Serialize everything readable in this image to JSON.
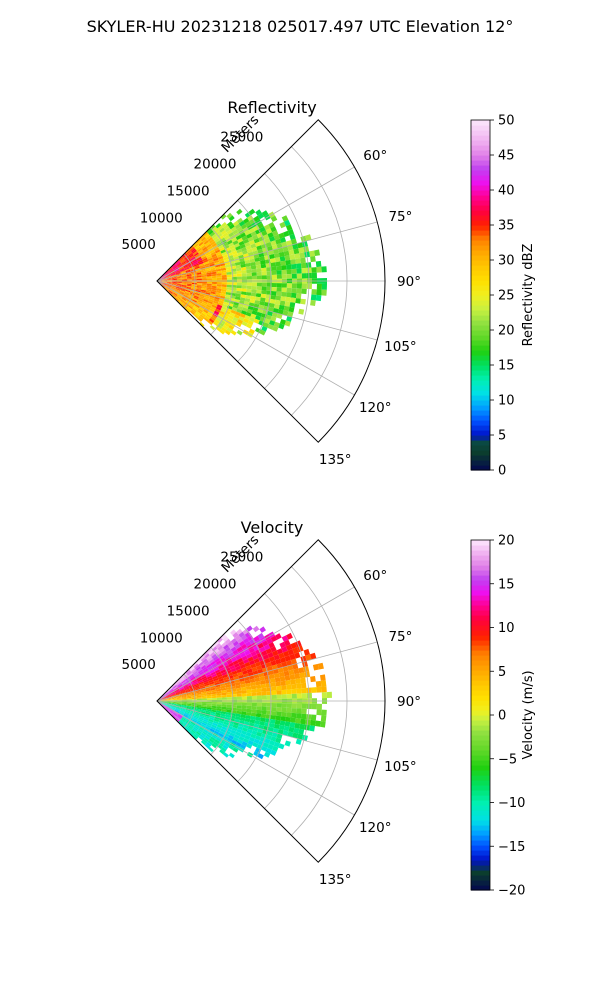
{
  "figure": {
    "suptitle": "SKYLER-HU  20231218  025017.497 UTC Elevation 12°"
  },
  "chart_data": [
    {
      "type": "heatmap",
      "subtype": "polar-sector",
      "title": "Reflectivity",
      "radial_label": "Meters",
      "theta_range_deg": [
        45,
        135
      ],
      "r_max_m": 30000,
      "r_ticks": [
        5000,
        10000,
        15000,
        20000,
        25000
      ],
      "r_tick_labels": [
        "5000",
        "10000",
        "15000",
        "20000",
        "25000"
      ],
      "theta_ticks": [
        "60°",
        "75°",
        "90°",
        "105°",
        "120°",
        "135°"
      ],
      "grid": true,
      "colorbar": {
        "label": "Reflectivity dBZ",
        "range": [
          0,
          50
        ],
        "ticks": [
          "0",
          "5",
          "10",
          "15",
          "20",
          "25",
          "30",
          "35",
          "40",
          "45",
          "50"
        ],
        "stops": [
          {
            "v": 0,
            "c": "#04064f"
          },
          {
            "v": 2.5,
            "c": "#0b3d2e"
          },
          {
            "v": 4,
            "c": "#0a4a44"
          },
          {
            "v": 5,
            "c": "#0012c8"
          },
          {
            "v": 7,
            "c": "#0050ff"
          },
          {
            "v": 9,
            "c": "#00a0ff"
          },
          {
            "v": 11,
            "c": "#00e0e6"
          },
          {
            "v": 13,
            "c": "#00f0b0"
          },
          {
            "v": 15,
            "c": "#00e060"
          },
          {
            "v": 17,
            "c": "#20d010"
          },
          {
            "v": 19,
            "c": "#60d828"
          },
          {
            "v": 21,
            "c": "#90e040"
          },
          {
            "v": 23,
            "c": "#c8f040"
          },
          {
            "v": 25,
            "c": "#f0f020"
          },
          {
            "v": 27,
            "c": "#ffe000"
          },
          {
            "v": 29,
            "c": "#ffc800"
          },
          {
            "v": 31,
            "c": "#ffaa00"
          },
          {
            "v": 33,
            "c": "#ff8000"
          },
          {
            "v": 35,
            "c": "#ff2000"
          },
          {
            "v": 37,
            "c": "#ff0040"
          },
          {
            "v": 39,
            "c": "#ff0090"
          },
          {
            "v": 41,
            "c": "#ee10ee"
          },
          {
            "v": 43,
            "c": "#c040f0"
          },
          {
            "v": 45,
            "c": "#e080e8"
          },
          {
            "v": 47,
            "c": "#f0b0f0"
          },
          {
            "v": 50,
            "c": "#fde8fd"
          }
        ]
      }
    },
    {
      "type": "heatmap",
      "subtype": "polar-sector",
      "title": "Velocity",
      "radial_label": "Meters",
      "theta_range_deg": [
        45,
        135
      ],
      "r_max_m": 30000,
      "r_ticks": [
        5000,
        10000,
        15000,
        20000,
        25000
      ],
      "r_tick_labels": [
        "5000",
        "10000",
        "15000",
        "20000",
        "25000"
      ],
      "theta_ticks": [
        "60°",
        "75°",
        "90°",
        "105°",
        "120°",
        "135°"
      ],
      "grid": true,
      "colorbar": {
        "label": "Velocity (m/s)",
        "range": [
          -20,
          20
        ],
        "ticks": [
          "−20",
          "−15",
          "−10",
          "−5",
          "0",
          "5",
          "10",
          "15",
          "20"
        ],
        "stops": [
          {
            "v": -20,
            "c": "#04064f"
          },
          {
            "v": -18,
            "c": "#0b3d2e"
          },
          {
            "v": -16.5,
            "c": "#0012c8"
          },
          {
            "v": -15,
            "c": "#0050ff"
          },
          {
            "v": -13.5,
            "c": "#00a0ff"
          },
          {
            "v": -12,
            "c": "#00e0e6"
          },
          {
            "v": -10,
            "c": "#00f0b0"
          },
          {
            "v": -8,
            "c": "#00e060"
          },
          {
            "v": -6,
            "c": "#20d010"
          },
          {
            "v": -4,
            "c": "#60d828"
          },
          {
            "v": -2,
            "c": "#90e040"
          },
          {
            "v": -0.5,
            "c": "#c8f040"
          },
          {
            "v": 0.5,
            "c": "#f0f020"
          },
          {
            "v": 2,
            "c": "#ffe000"
          },
          {
            "v": 3.5,
            "c": "#ffc800"
          },
          {
            "v": 5,
            "c": "#ffaa00"
          },
          {
            "v": 7,
            "c": "#ff8000"
          },
          {
            "v": 9,
            "c": "#ff2000"
          },
          {
            "v": 11,
            "c": "#ff0040"
          },
          {
            "v": 12.5,
            "c": "#ff0090"
          },
          {
            "v": 14,
            "c": "#ee10ee"
          },
          {
            "v": 15.5,
            "c": "#c040f0"
          },
          {
            "v": 17,
            "c": "#e080e8"
          },
          {
            "v": 18.5,
            "c": "#f0b0f0"
          },
          {
            "v": 20,
            "c": "#fde8fd"
          }
        ]
      }
    }
  ]
}
